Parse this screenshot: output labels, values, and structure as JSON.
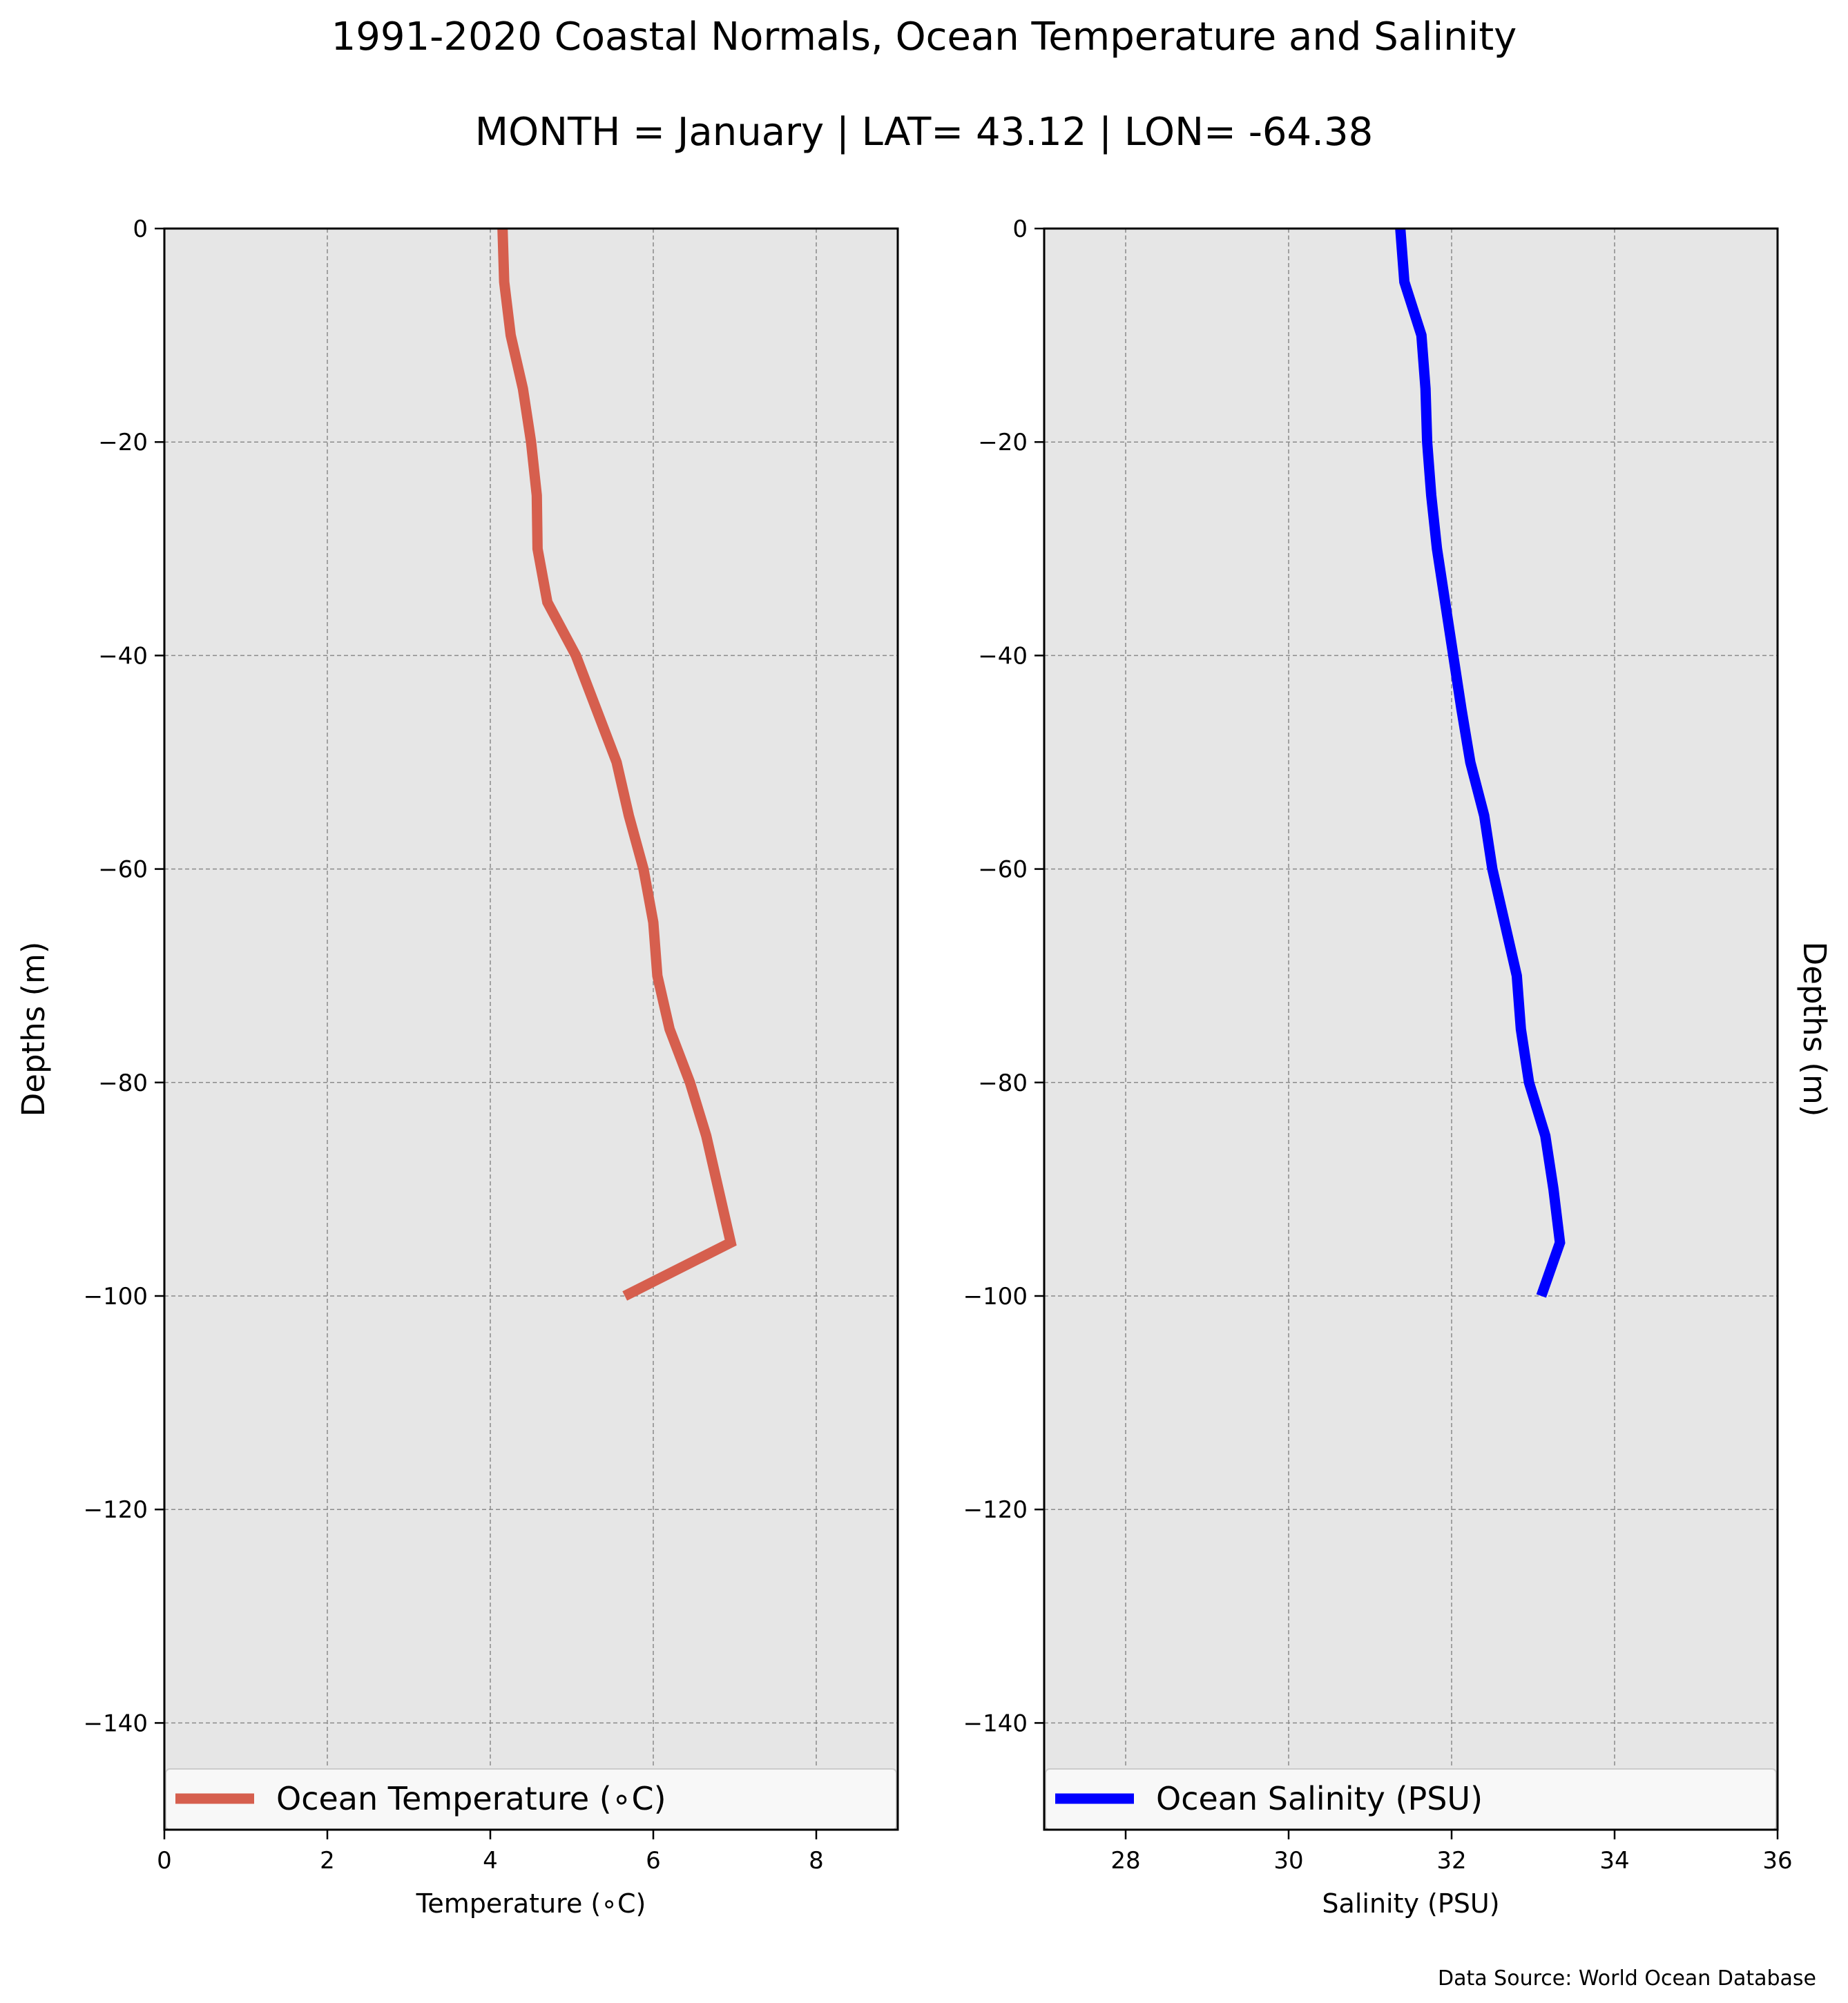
{
  "title": "1991-2020 Coastal Normals, Ocean Temperature and Salinity",
  "subtitle": "MONTH = January | LAT= 43.12 | LON= -64.38",
  "source_note": "Data Source: World Ocean Database",
  "colors": {
    "temperature": "#d65f4e",
    "salinity": "#0000ff",
    "plot_background": "#e6e6e6",
    "grid": "#8a8a8a"
  },
  "chart_data": [
    {
      "type": "line",
      "xlabel": "Temperature (∘C)",
      "ylabel": "Depths (m)",
      "xlim": [
        0,
        9
      ],
      "ylim": [
        -150,
        0
      ],
      "xticks": [
        0,
        2,
        4,
        6,
        8
      ],
      "xtick_labels": [
        "0",
        "2",
        "4",
        "6",
        "8"
      ],
      "yticks": [
        0,
        -20,
        -40,
        -60,
        -80,
        -100,
        -120,
        -140
      ],
      "ytick_labels": [
        "0",
        "−20",
        "−40",
        "−60",
        "−80",
        "−100",
        "−120",
        "−140"
      ],
      "grid": true,
      "legend_position": "bottom",
      "series": [
        {
          "name": "Ocean Temperature (∘C)",
          "color": "#d65f4e",
          "x": [
            4.15,
            4.17,
            4.25,
            4.4,
            4.5,
            4.57,
            4.58,
            4.7,
            5.05,
            5.3,
            5.55,
            5.7,
            5.88,
            6.0,
            6.05,
            6.2,
            6.45,
            6.65,
            6.95,
            5.65
          ],
          "y": [
            0,
            -5,
            -10,
            -15,
            -20,
            -25,
            -30,
            -35,
            -40,
            -45,
            -50,
            -55,
            -60,
            -65,
            -70,
            -75,
            -80,
            -85,
            -95,
            -100
          ]
        }
      ]
    },
    {
      "type": "line",
      "xlabel": "Salinity (PSU)",
      "ylabel": "Depths (m)",
      "xlim": [
        27,
        36
      ],
      "ylim": [
        -150,
        0
      ],
      "xticks": [
        28,
        30,
        32,
        34,
        36
      ],
      "xtick_labels": [
        "28",
        "30",
        "32",
        "34",
        "36"
      ],
      "yticks": [
        0,
        -20,
        -40,
        -60,
        -80,
        -100,
        -120,
        -140
      ],
      "ytick_labels": [
        "0",
        "−20",
        "−40",
        "−60",
        "−80",
        "−100",
        "−120",
        "−140"
      ],
      "grid": true,
      "legend_position": "bottom",
      "series": [
        {
          "name": "Ocean Salinity (PSU)",
          "color": "#0000ff",
          "x": [
            31.37,
            31.42,
            31.63,
            31.68,
            31.7,
            31.75,
            31.82,
            31.92,
            32.02,
            32.12,
            32.23,
            32.4,
            32.5,
            32.65,
            32.8,
            32.85,
            32.95,
            33.15,
            33.25,
            33.33,
            33.1
          ],
          "y": [
            0,
            -5,
            -10,
            -15,
            -20,
            -25,
            -30,
            -35,
            -40,
            -45,
            -50,
            -55,
            -60,
            -65,
            -70,
            -75,
            -80,
            -85,
            -90,
            -95,
            -100
          ]
        }
      ]
    }
  ]
}
